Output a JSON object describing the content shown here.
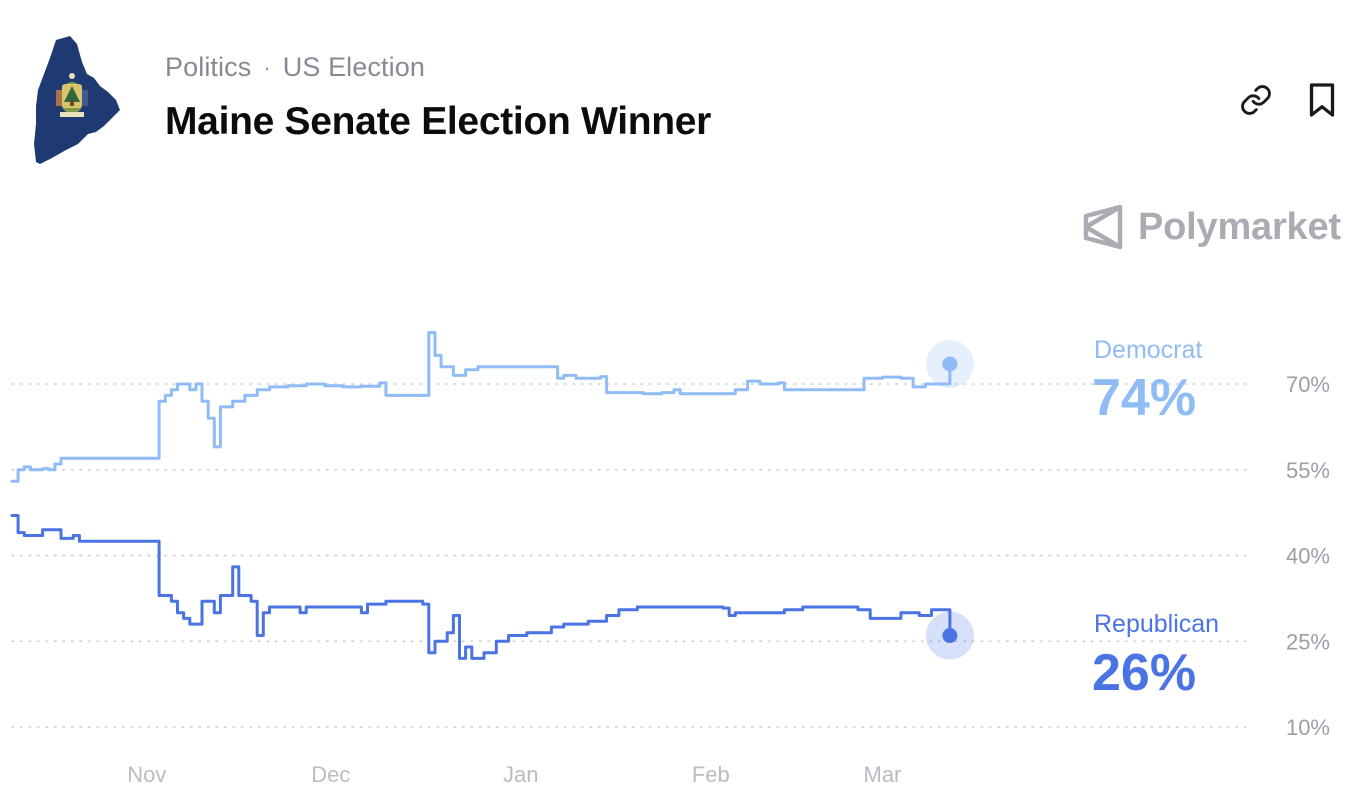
{
  "header": {
    "breadcrumb": [
      "Politics",
      "US Election"
    ],
    "title": "Maine Senate Election Winner"
  },
  "icons": {
    "logo": "maine-state-flag-icon",
    "link": "link-icon",
    "bookmark": "bookmark-icon",
    "brand": "polymarket-logo-icon"
  },
  "brand": {
    "name": "Polymarket"
  },
  "colors": {
    "democrat": "#8fbcf5",
    "republican": "#4a74e3",
    "grid": "#c9ccd1",
    "axis_text": "#9aa0a8"
  },
  "chart_data": {
    "type": "line",
    "yaxis": {
      "ticks": [
        10,
        25,
        40,
        55,
        70
      ],
      "tick_labels": [
        "10%",
        "25%",
        "40%",
        "55%",
        "70%"
      ],
      "ylim": [
        10,
        70
      ],
      "position": "right",
      "grid": "dotted"
    },
    "xaxis": {
      "labels": [
        "Nov",
        "Dec",
        "Jan",
        "Feb",
        "Mar"
      ],
      "label_dates": [
        "2025-11-01",
        "2025-12-01",
        "2026-01-01",
        "2026-02-01",
        "2026-03-01"
      ],
      "xlim": [
        "2025-10-10",
        "2026-03-21"
      ]
    },
    "series": [
      {
        "name": "Democrat",
        "current_label": "74%",
        "points": [
          [
            "2025-10-10",
            53
          ],
          [
            "2025-10-11",
            55
          ],
          [
            "2025-10-12",
            55.5
          ],
          [
            "2025-10-13",
            55
          ],
          [
            "2025-10-15",
            55.2
          ],
          [
            "2025-10-16",
            55
          ],
          [
            "2025-10-17",
            56
          ],
          [
            "2025-10-18",
            57
          ],
          [
            "2025-10-22",
            57
          ],
          [
            "2025-10-31",
            57
          ],
          [
            "2025-11-02",
            57
          ],
          [
            "2025-11-03",
            67
          ],
          [
            "2025-11-04",
            68
          ],
          [
            "2025-11-05",
            69
          ],
          [
            "2025-11-06",
            70
          ],
          [
            "2025-11-07",
            70
          ],
          [
            "2025-11-08",
            69
          ],
          [
            "2025-11-09",
            70
          ],
          [
            "2025-11-10",
            67
          ],
          [
            "2025-11-11",
            64
          ],
          [
            "2025-11-12",
            59
          ],
          [
            "2025-11-13",
            66
          ],
          [
            "2025-11-15",
            67
          ],
          [
            "2025-11-17",
            68
          ],
          [
            "2025-11-19",
            69
          ],
          [
            "2025-11-21",
            69.5
          ],
          [
            "2025-11-24",
            69.7
          ],
          [
            "2025-11-27",
            70
          ],
          [
            "2025-11-30",
            69.7
          ],
          [
            "2025-12-03",
            69.5
          ],
          [
            "2025-12-06",
            69.6
          ],
          [
            "2025-12-09",
            70.2
          ],
          [
            "2025-12-10",
            68
          ],
          [
            "2025-12-16",
            68
          ],
          [
            "2025-12-17",
            79
          ],
          [
            "2025-12-18",
            75
          ],
          [
            "2025-12-19",
            73
          ],
          [
            "2025-12-20",
            73
          ],
          [
            "2025-12-21",
            71.5
          ],
          [
            "2025-12-23",
            72.5
          ],
          [
            "2025-12-25",
            73
          ],
          [
            "2025-12-29",
            73
          ],
          [
            "2026-01-03",
            73
          ],
          [
            "2026-01-06",
            73
          ],
          [
            "2026-01-07",
            71
          ],
          [
            "2026-01-08",
            71.5
          ],
          [
            "2026-01-10",
            71
          ],
          [
            "2026-01-14",
            71.3
          ],
          [
            "2026-01-15",
            68.5
          ],
          [
            "2026-01-18",
            68.5
          ],
          [
            "2026-01-21",
            68.3
          ],
          [
            "2026-01-24",
            68.5
          ],
          [
            "2026-01-26",
            69
          ],
          [
            "2026-01-27",
            68.3
          ],
          [
            "2026-02-03",
            68.3
          ],
          [
            "2026-02-05",
            69
          ],
          [
            "2026-02-07",
            70.5
          ],
          [
            "2026-02-09",
            70
          ],
          [
            "2026-02-12",
            70.2
          ],
          [
            "2026-02-13",
            69
          ],
          [
            "2026-02-18",
            69
          ],
          [
            "2026-02-24",
            69
          ],
          [
            "2026-02-26",
            71
          ],
          [
            "2026-03-01",
            71.2
          ],
          [
            "2026-03-04",
            71
          ],
          [
            "2026-03-06",
            69.5
          ],
          [
            "2026-03-08",
            70
          ],
          [
            "2026-03-10",
            70
          ],
          [
            "2026-03-12",
            73.5
          ]
        ]
      },
      {
        "name": "Republican",
        "current_label": "26%",
        "points": [
          [
            "2025-10-10",
            47
          ],
          [
            "2025-10-11",
            44
          ],
          [
            "2025-10-12",
            43.5
          ],
          [
            "2025-10-14",
            43.5
          ],
          [
            "2025-10-15",
            44.5
          ],
          [
            "2025-10-17",
            44.5
          ],
          [
            "2025-10-18",
            43
          ],
          [
            "2025-10-20",
            43.5
          ],
          [
            "2025-10-21",
            42.5
          ],
          [
            "2025-10-29",
            42.5
          ],
          [
            "2025-11-02",
            42.5
          ],
          [
            "2025-11-03",
            33
          ],
          [
            "2025-11-05",
            32
          ],
          [
            "2025-11-06",
            30
          ],
          [
            "2025-11-07",
            29
          ],
          [
            "2025-11-08",
            28
          ],
          [
            "2025-11-10",
            32
          ],
          [
            "2025-11-12",
            30
          ],
          [
            "2025-11-13",
            33
          ],
          [
            "2025-11-14",
            33
          ],
          [
            "2025-11-15",
            38
          ],
          [
            "2025-11-16",
            33
          ],
          [
            "2025-11-18",
            32
          ],
          [
            "2025-11-19",
            26
          ],
          [
            "2025-11-20",
            30
          ],
          [
            "2025-11-21",
            31
          ],
          [
            "2025-11-25",
            31
          ],
          [
            "2025-11-26",
            30
          ],
          [
            "2025-11-27",
            31
          ],
          [
            "2025-12-02",
            31
          ],
          [
            "2025-12-05",
            31
          ],
          [
            "2025-12-06",
            30
          ],
          [
            "2025-12-07",
            31.5
          ],
          [
            "2025-12-10",
            32
          ],
          [
            "2025-12-16",
            31.5
          ],
          [
            "2025-12-17",
            23
          ],
          [
            "2025-12-18",
            25
          ],
          [
            "2025-12-20",
            26.5
          ],
          [
            "2025-12-21",
            29.5
          ],
          [
            "2025-12-22",
            22
          ],
          [
            "2025-12-23",
            24
          ],
          [
            "2025-12-24",
            22
          ],
          [
            "2025-12-26",
            23
          ],
          [
            "2025-12-28",
            25
          ],
          [
            "2025-12-30",
            26
          ],
          [
            "2026-01-02",
            26.5
          ],
          [
            "2026-01-06",
            27.5
          ],
          [
            "2026-01-08",
            28
          ],
          [
            "2026-01-12",
            28.5
          ],
          [
            "2026-01-15",
            29.5
          ],
          [
            "2026-01-17",
            30.5
          ],
          [
            "2026-01-20",
            31
          ],
          [
            "2026-01-28",
            31
          ],
          [
            "2026-02-03",
            30.8
          ],
          [
            "2026-02-04",
            29.5
          ],
          [
            "2026-02-05",
            30
          ],
          [
            "2026-02-08",
            30
          ],
          [
            "2026-02-12",
            30
          ],
          [
            "2026-02-13",
            30.5
          ],
          [
            "2026-02-16",
            31
          ],
          [
            "2026-02-24",
            31
          ],
          [
            "2026-02-25",
            30.5
          ],
          [
            "2026-02-27",
            29
          ],
          [
            "2026-03-01",
            29
          ],
          [
            "2026-03-04",
            30
          ],
          [
            "2026-03-07",
            29.5
          ],
          [
            "2026-03-09",
            30.5
          ],
          [
            "2026-03-11",
            30.5
          ],
          [
            "2026-03-12",
            26
          ]
        ]
      }
    ]
  }
}
